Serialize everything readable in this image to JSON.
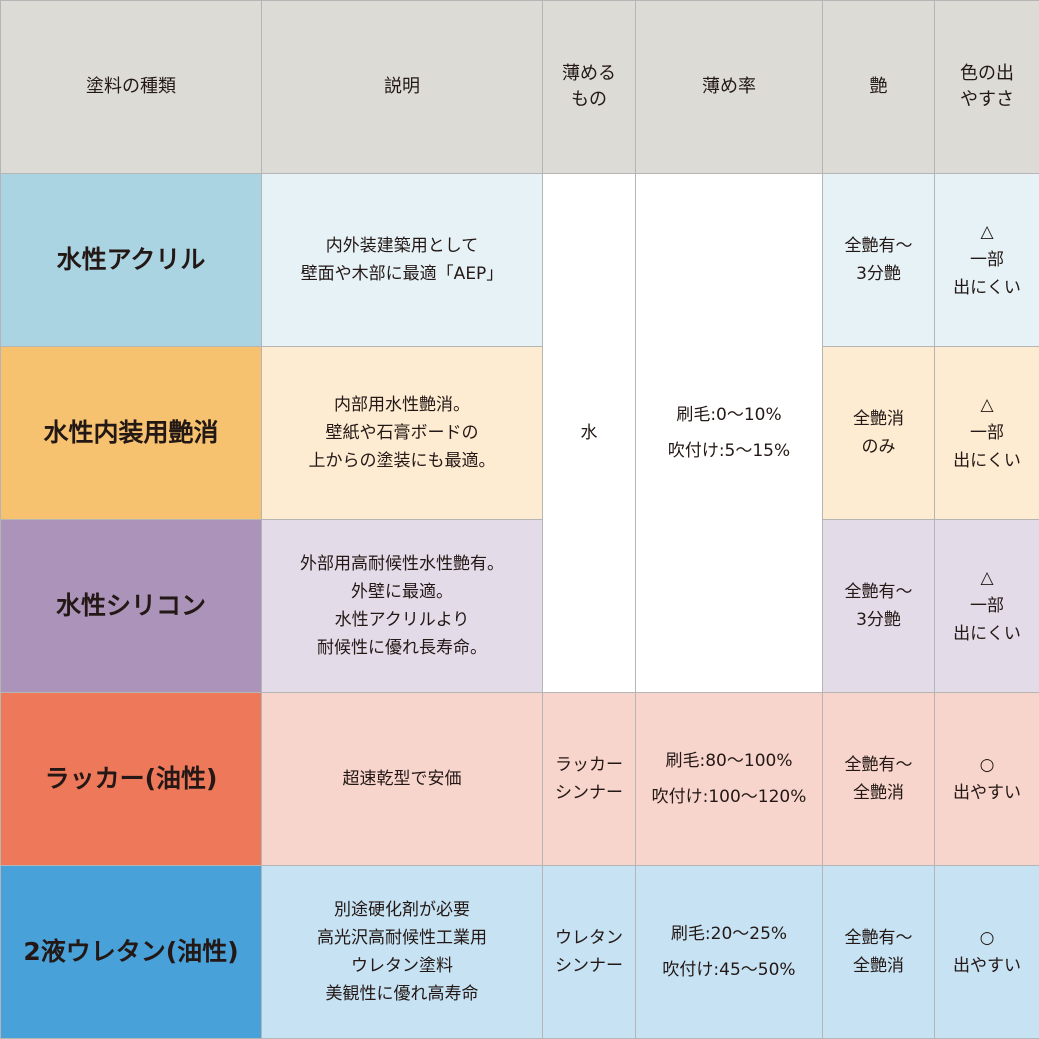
{
  "headers": [
    "塗料の種類",
    "説明",
    "薄める\nもの",
    "薄め率",
    "艶",
    "色の出\nやすさ"
  ],
  "colors": {
    "header": "#dcdbd6"
  },
  "merged": {
    "thinner": "水",
    "ratio": "刷毛:0〜10%\n吹付け:5〜15%"
  },
  "rows": [
    {
      "name": "水性アクリル",
      "desc": "内外装建築用として\n壁面や木部に最適「AEP」",
      "gloss": "全艶有〜\n3分艶",
      "color_ease": "△\n一部\n出にくい",
      "name_color": "#abd4e2",
      "cell_color": "#e6f2f6"
    },
    {
      "name": "水性内装用艶消",
      "desc": "内部用水性艶消。\n壁紙や石膏ボードの\n上からの塗装にも最適。",
      "gloss": "全艶消\nのみ",
      "color_ease": "△\n一部\n出にくい",
      "name_color": "#f6c26f",
      "cell_color": "#fdebd2"
    },
    {
      "name": "水性シリコン",
      "desc": "外部用高耐候性水性艶有。\n外壁に最適。\n水性アクリルより\n耐候性に優れ長寿命。",
      "gloss": "全艶有〜\n3分艶",
      "color_ease": "△\n一部\n出にくい",
      "name_color": "#ab93b9",
      "cell_color": "#e4dbe9"
    },
    {
      "name": "ラッカー(油性)",
      "desc": "超速乾型で安価",
      "thinner": "ラッカー\nシンナー",
      "ratio": "刷毛:80〜100%\n吹付け:100〜120%",
      "gloss": "全艶有〜\n全艶消",
      "color_ease": "○\n出やすい",
      "name_color": "#ee785a",
      "cell_color": "#f8d5cc"
    },
    {
      "name": "2液ウレタン(油性)",
      "desc": "別途硬化剤が必要\n高光沢高耐候性工業用\nウレタン塗料\n美観性に優れ高寿命",
      "thinner": "ウレタン\nシンナー",
      "ratio": "刷毛:20〜25%\n吹付け:45〜50%",
      "gloss": "全艶有〜\n全艶消",
      "color_ease": "○\n出やすい",
      "name_color": "#48a1d9",
      "cell_color": "#c6e2f3"
    }
  ]
}
